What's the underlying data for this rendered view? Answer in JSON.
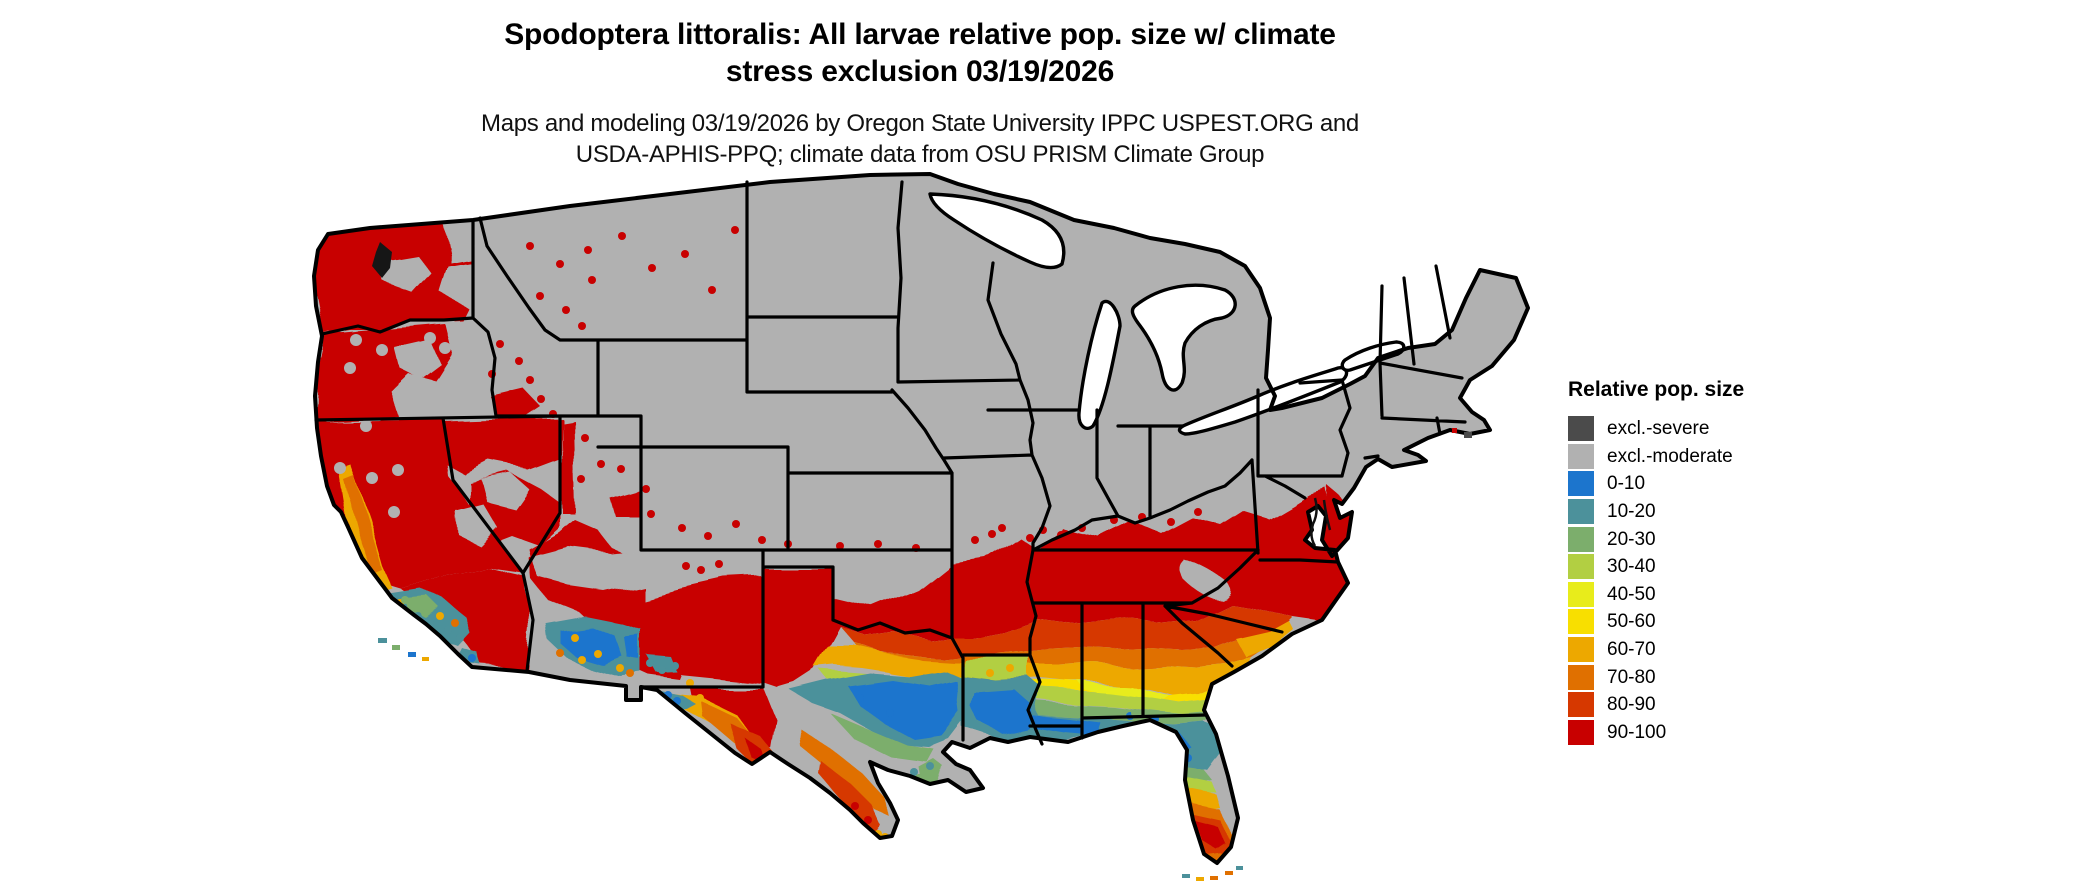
{
  "title": {
    "line1": "Spodoptera littoralis: All larvae relative pop. size w/ climate",
    "line2": "stress exclusion 03/19/2026"
  },
  "subtitle": {
    "line1": "Maps and modeling 03/19/2026 by Oregon State University IPPC USPEST.ORG and",
    "line2": "USDA-APHIS-PPQ; climate data from OSU PRISM Climate Group"
  },
  "legend": {
    "title": "Relative pop. size",
    "items": [
      {
        "label": "excl.-severe",
        "color": "#4b4b4b"
      },
      {
        "label": "excl.-moderate",
        "color": "#b1b1b1"
      },
      {
        "label": "0-10",
        "color": "#1c75cd"
      },
      {
        "label": "10-20",
        "color": "#4c919b"
      },
      {
        "label": "20-30",
        "color": "#7cae6c"
      },
      {
        "label": "30-40",
        "color": "#b2cf42"
      },
      {
        "label": "40-50",
        "color": "#e8ec1b"
      },
      {
        "label": "50-60",
        "color": "#f8df00"
      },
      {
        "label": "60-70",
        "color": "#eda800"
      },
      {
        "label": "70-80",
        "color": "#e07000"
      },
      {
        "label": "80-90",
        "color": "#d63800"
      },
      {
        "label": "90-100",
        "color": "#c80000"
      }
    ]
  },
  "map": {
    "region": "Continental United States",
    "excluded_land_color": "#b1b1b1",
    "border_color": "#000000",
    "water_color": "#ffffff"
  }
}
